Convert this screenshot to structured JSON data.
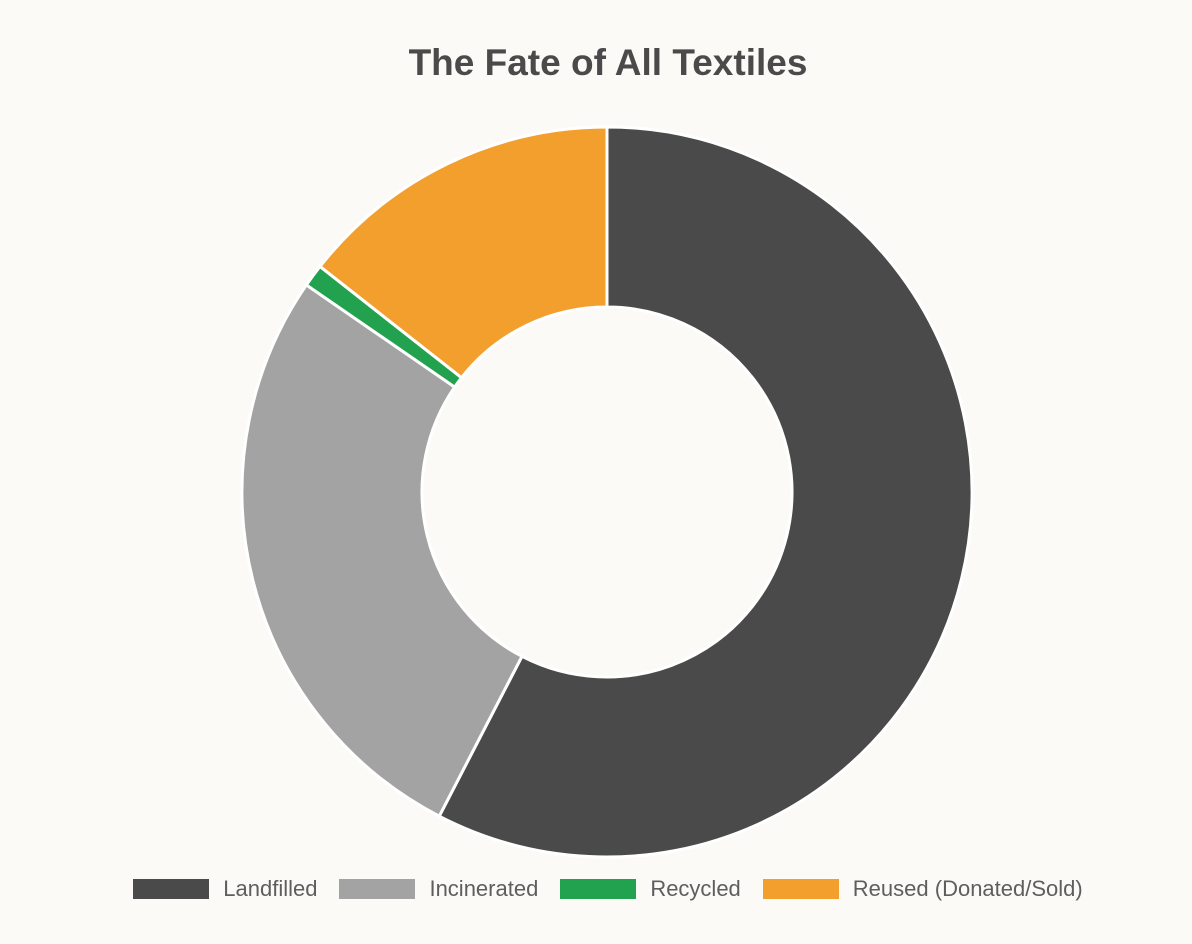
{
  "chart_data": {
    "type": "pie",
    "variant": "donut",
    "title": "The Fate of All Textiles",
    "categories": [
      "Landfilled",
      "Incinerated",
      "Recycled",
      "Reused (Donated/Sold)"
    ],
    "values": [
      57.6,
      27.0,
      1.0,
      14.4
    ],
    "unit": "percent",
    "colors": [
      "#4a4a4a",
      "#a3a3a3",
      "#22a24f",
      "#f29f2d"
    ],
    "legend_position": "bottom",
    "start_angle": "top",
    "direction": "clockwise"
  }
}
